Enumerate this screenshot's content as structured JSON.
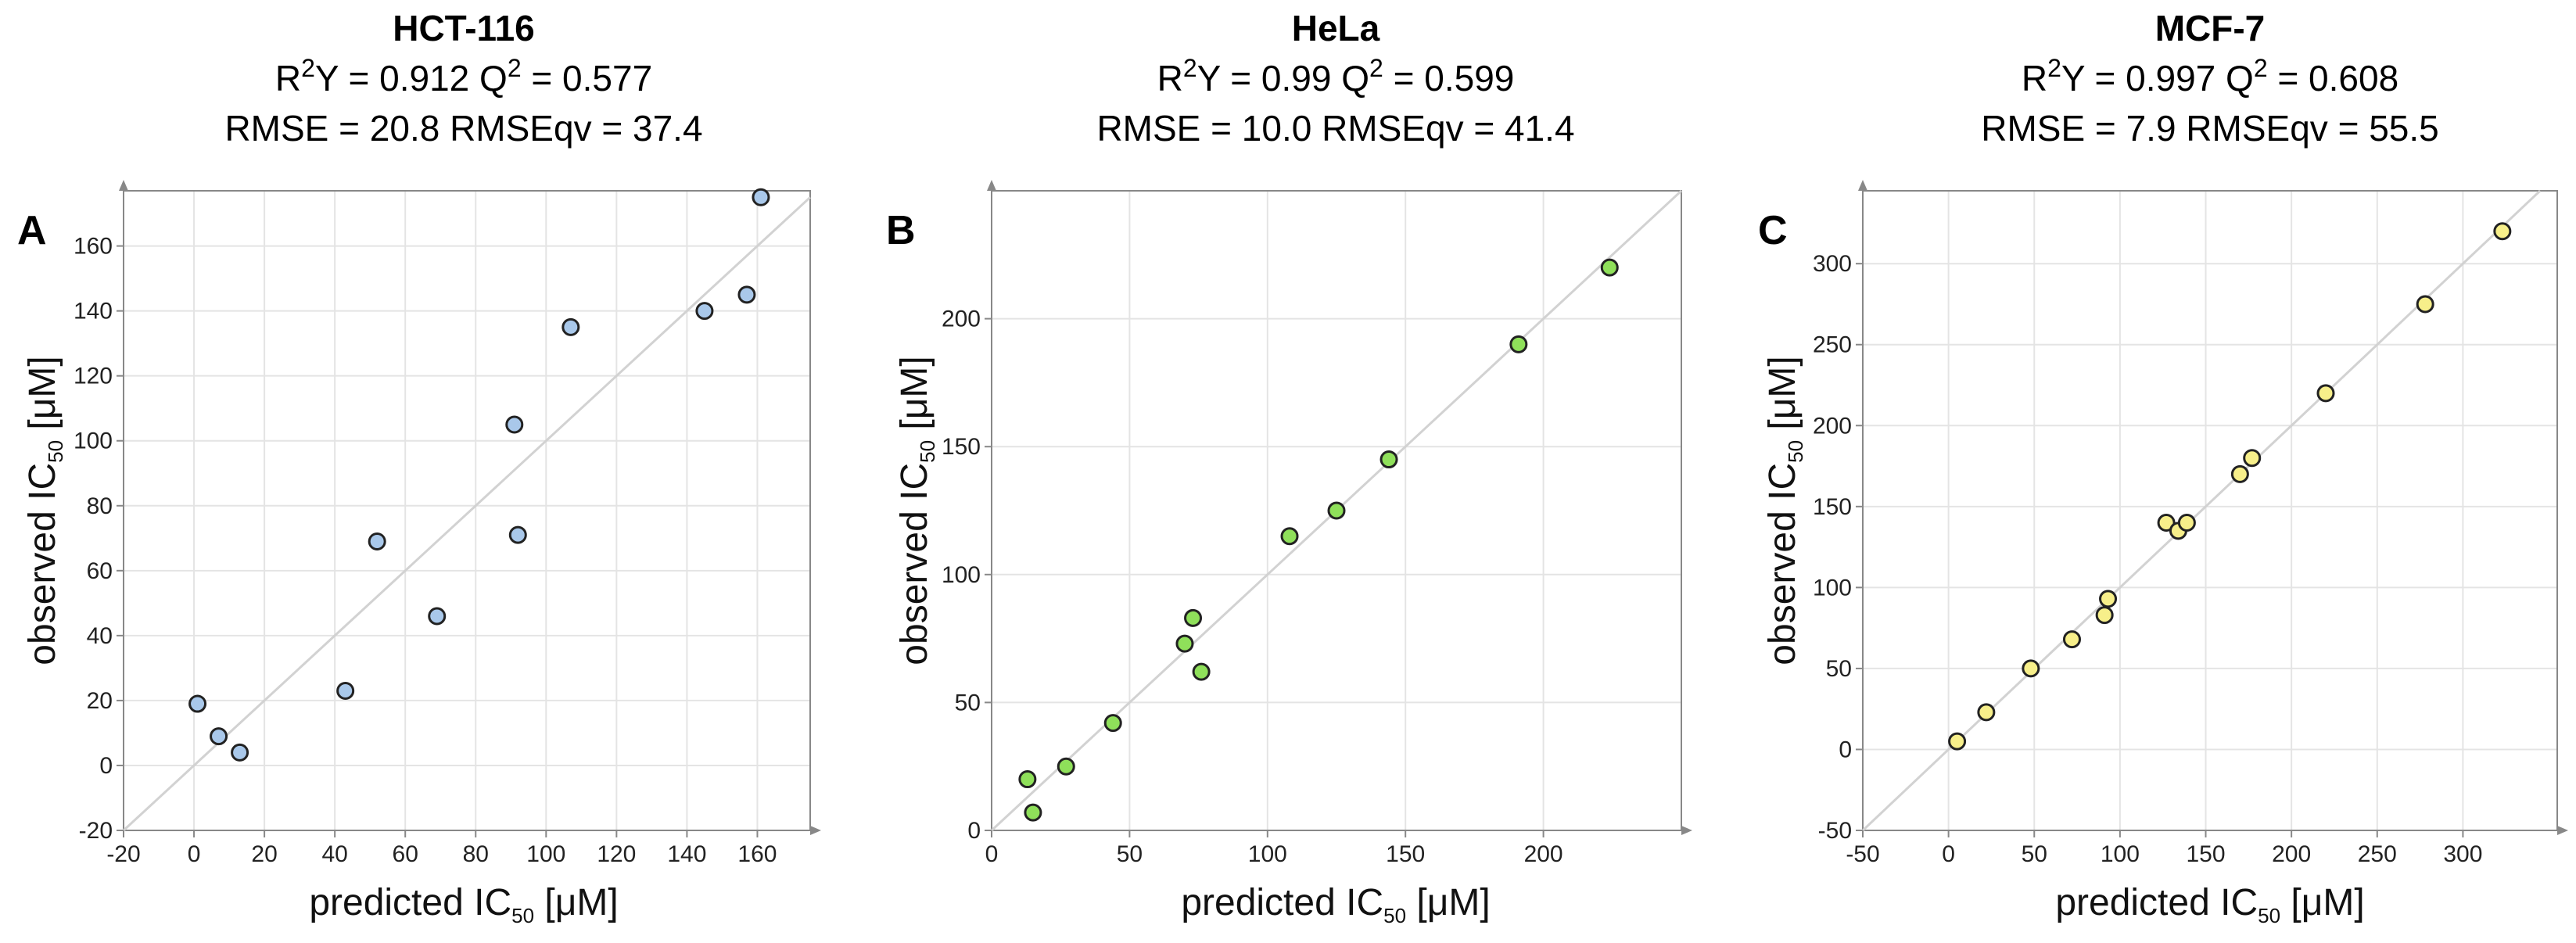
{
  "chart_data": [
    {
      "type": "scatter",
      "panel_label": "A",
      "title": "HCT-116",
      "stats_line1": {
        "r2_prefix": "R",
        "r2_sup": "2",
        "r2_text": "Y = 0.912 Q",
        "q2_sup": "2",
        "q2_text": " = 0.577"
      },
      "stats_line2": "RMSE = 20.8 RMSEqv = 37.4",
      "xlabel": {
        "main": "predicted IC",
        "sub": "50",
        "unit": " [μM]"
      },
      "ylabel": {
        "main": "observed IC",
        "sub": "50",
        "unit": " [μM]"
      },
      "xlim": [
        -20,
        175
      ],
      "ylim": [
        -20,
        177
      ],
      "xticks": [
        -20,
        0,
        20,
        40,
        60,
        80,
        100,
        120,
        140,
        160
      ],
      "yticks": [
        -20,
        0,
        20,
        40,
        60,
        80,
        100,
        120,
        140,
        160
      ],
      "point_color": "#a9c8ea",
      "points": [
        {
          "x": 1,
          "y": 19
        },
        {
          "x": 7,
          "y": 9
        },
        {
          "x": 13,
          "y": 4
        },
        {
          "x": 43,
          "y": 23
        },
        {
          "x": 52,
          "y": 69
        },
        {
          "x": 69,
          "y": 46
        },
        {
          "x": 91,
          "y": 105
        },
        {
          "x": 92,
          "y": 71
        },
        {
          "x": 107,
          "y": 135
        },
        {
          "x": 145,
          "y": 140
        },
        {
          "x": 157,
          "y": 145
        },
        {
          "x": 161,
          "y": 175
        }
      ]
    },
    {
      "type": "scatter",
      "panel_label": "B",
      "title": "HeLa",
      "stats_line1": {
        "r2_prefix": "R",
        "r2_sup": "2",
        "r2_text": "Y = 0.99 Q",
        "q2_sup": "2",
        "q2_text": " = 0.599"
      },
      "stats_line2": "RMSE = 10.0 RMSEqv = 41.4",
      "xlabel": {
        "main": "predicted IC",
        "sub": "50",
        "unit": " [μM]"
      },
      "ylabel": {
        "main": "observed IC",
        "sub": "50",
        "unit": " [μM]"
      },
      "xlim": [
        0,
        250
      ],
      "ylim": [
        0,
        250
      ],
      "xticks": [
        0,
        50,
        100,
        150,
        200
      ],
      "yticks": [
        0,
        50,
        100,
        150,
        200
      ],
      "point_color": "#8fe05a",
      "points": [
        {
          "x": 13,
          "y": 20
        },
        {
          "x": 15,
          "y": 7
        },
        {
          "x": 27,
          "y": 25
        },
        {
          "x": 44,
          "y": 42
        },
        {
          "x": 70,
          "y": 73
        },
        {
          "x": 73,
          "y": 83
        },
        {
          "x": 76,
          "y": 62
        },
        {
          "x": 108,
          "y": 115
        },
        {
          "x": 125,
          "y": 125
        },
        {
          "x": 144,
          "y": 145
        },
        {
          "x": 191,
          "y": 190
        },
        {
          "x": 224,
          "y": 220
        }
      ]
    },
    {
      "type": "scatter",
      "panel_label": "C",
      "title": "MCF-7",
      "stats_line1": {
        "r2_prefix": "R",
        "r2_sup": "2",
        "r2_text": "Y = 0.997 Q",
        "q2_sup": "2",
        "q2_text": " = 0.608"
      },
      "stats_line2": "RMSE = 7.9 RMSEqv = 55.5",
      "xlabel": {
        "main": "predicted IC",
        "sub": "50",
        "unit": " [μM]"
      },
      "ylabel": {
        "main": "observed IC",
        "sub": "50",
        "unit": " [μM]"
      },
      "xlim": [
        -50,
        355
      ],
      "ylim": [
        -50,
        345
      ],
      "xticks": [
        -50,
        0,
        50,
        100,
        150,
        200,
        250,
        300
      ],
      "yticks": [
        -50,
        0,
        50,
        100,
        150,
        200,
        250,
        300
      ],
      "point_color": "#f7ef8a",
      "points": [
        {
          "x": 5,
          "y": 5
        },
        {
          "x": 22,
          "y": 23
        },
        {
          "x": 48,
          "y": 50
        },
        {
          "x": 72,
          "y": 68
        },
        {
          "x": 91,
          "y": 83
        },
        {
          "x": 93,
          "y": 93
        },
        {
          "x": 127,
          "y": 140
        },
        {
          "x": 134,
          "y": 135
        },
        {
          "x": 139,
          "y": 140
        },
        {
          "x": 170,
          "y": 170
        },
        {
          "x": 177,
          "y": 180
        },
        {
          "x": 220,
          "y": 220
        },
        {
          "x": 278,
          "y": 275
        },
        {
          "x": 323,
          "y": 320
        }
      ]
    }
  ],
  "colors": {
    "grid": "#e4e4e4",
    "axis": "#888888",
    "diagonal": "#d2d2d2",
    "marker_edge": "#222222"
  }
}
